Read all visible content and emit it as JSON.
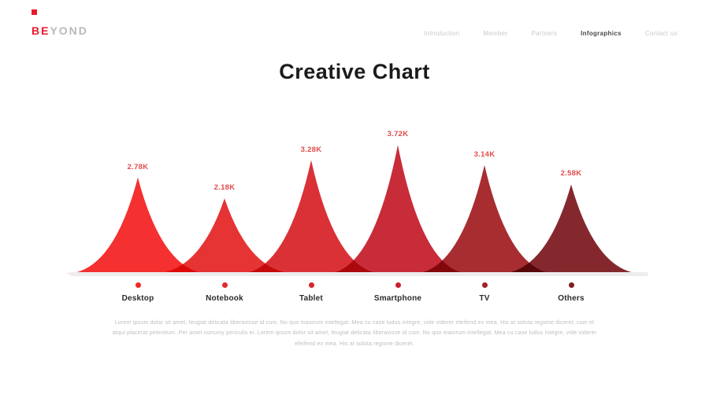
{
  "brand": {
    "name_bold": "BE",
    "name_light": "YOND",
    "accent": "#e8192c"
  },
  "nav": {
    "items": [
      {
        "label": "Introduction",
        "active": false
      },
      {
        "label": "Member",
        "active": false
      },
      {
        "label": "Partners",
        "active": false
      },
      {
        "label": "Infographics",
        "active": true
      },
      {
        "label": "Contact us",
        "active": false
      }
    ]
  },
  "title": "Creative Chart",
  "chart_data": {
    "type": "area",
    "title": "Creative Chart",
    "categories": [
      "Desktop",
      "Notebook",
      "Tablet",
      "Smartphone",
      "TV",
      "Others"
    ],
    "values": [
      2.78,
      2.18,
      3.28,
      3.72,
      3.14,
      2.58
    ],
    "value_labels": [
      "2.78K",
      "2.18K",
      "3.28K",
      "3.72K",
      "3.14K",
      "2.58K"
    ],
    "colors": [
      "#f52525",
      "#e52828",
      "#d8262b",
      "#c6202e",
      "#a32125",
      "#7e1c21"
    ],
    "value_label_color": "#e14b4b",
    "xlabel": "",
    "ylabel": "",
    "ylim": [
      0,
      4
    ],
    "grid": false,
    "legend": "none"
  },
  "description": "Lorem ipsum dolor sit amet, feugiat delicata liberavisse id cum. No quo maiorum intellegat. Mea cu case ludus integre, vide viderer eleifend ex mea. His at soluta regione diceret, cum et atqui placerat petentium. Per amet nonumy periculis ei. Lorem ipsum dolor sit amet, feugiat delicata liberavisse id cum. No quo maiorum intellegat. Mea cu case ludus integre, vide viderer eleifend ex mea. His at soluta regione diceret."
}
